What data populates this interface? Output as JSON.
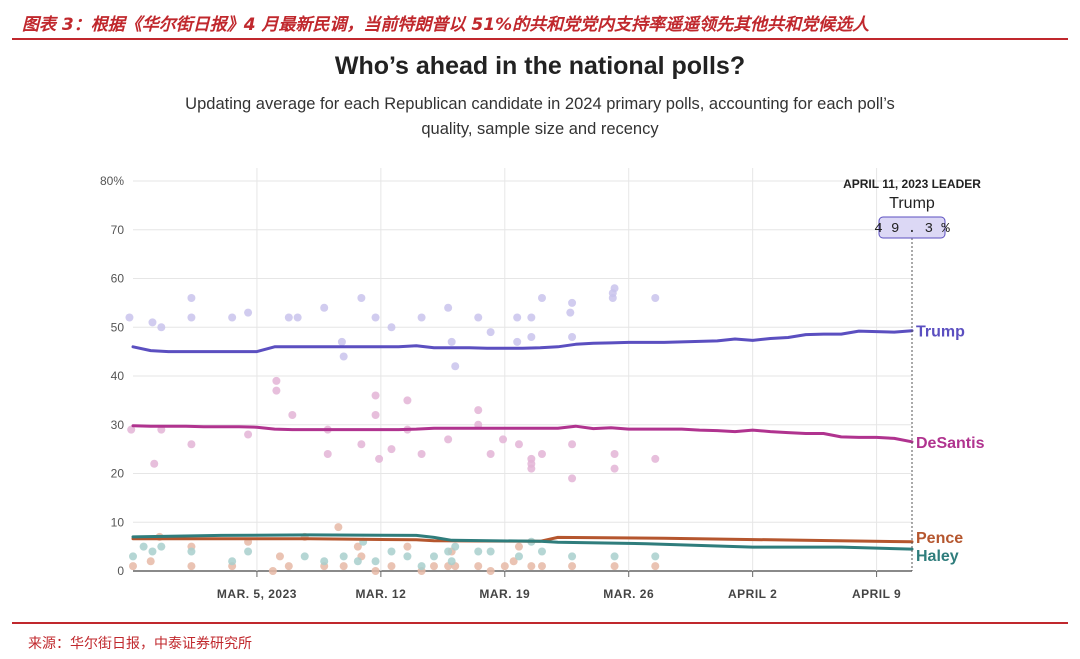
{
  "caption": "图表 3：根据《华尔街日报》4 月最新民调，当前特朗普以 51%的共和党党内支持率遥遥领先其他共和党候选人",
  "source": "来源：华尔街日报，中泰证券研究所",
  "chart_data": {
    "type": "line",
    "title": "Who’s ahead in the national polls?",
    "subtitle": "Updating average for each Republican candidate in 2024 primary polls, accounting for each poll’s quality, sample size and recency",
    "x_range": [
      "2023-02-26",
      "2023-04-11"
    ],
    "ylim": [
      0,
      80
    ],
    "y_ticks": [
      0,
      10,
      20,
      30,
      40,
      50,
      60,
      70,
      80
    ],
    "y_tick_labels": [
      "0",
      "10",
      "20",
      "30",
      "40",
      "50",
      "60",
      "70",
      "80%"
    ],
    "x_ticks": [
      {
        "date": "2023-03-05",
        "label": "MAR. 5, 2023"
      },
      {
        "date": "2023-03-12",
        "label": "MAR. 12"
      },
      {
        "date": "2023-03-19",
        "label": "MAR. 19"
      },
      {
        "date": "2023-03-26",
        "label": "MAR. 26"
      },
      {
        "date": "2023-04-02",
        "label": "APRIL 2"
      },
      {
        "date": "2023-04-09",
        "label": "APRIL 9"
      }
    ],
    "grid": true,
    "leader": {
      "date_label": "APRIL 11, 2023 LEADER",
      "date": "2023-04-11",
      "name": "Trump",
      "value_label": "49.3%"
    },
    "series": [
      {
        "name": "Trump",
        "color": "#5b4fc0",
        "dot_color": "#c9c3ec",
        "x": [
          "2023-02-26",
          "2023-02-27",
          "2023-02-28",
          "2023-03-01",
          "2023-03-02",
          "2023-03-03",
          "2023-03-04",
          "2023-03-05",
          "2023-03-06",
          "2023-03-07",
          "2023-03-08",
          "2023-03-09",
          "2023-03-10",
          "2023-03-11",
          "2023-03-12",
          "2023-03-13",
          "2023-03-14",
          "2023-03-15",
          "2023-03-16",
          "2023-03-17",
          "2023-03-18",
          "2023-03-19",
          "2023-03-20",
          "2023-03-21",
          "2023-03-22",
          "2023-03-23",
          "2023-03-24",
          "2023-03-25",
          "2023-03-26",
          "2023-03-27",
          "2023-03-28",
          "2023-03-29",
          "2023-03-30",
          "2023-03-31",
          "2023-04-01",
          "2023-04-02",
          "2023-04-03",
          "2023-04-04",
          "2023-04-05",
          "2023-04-06",
          "2023-04-07",
          "2023-04-08",
          "2023-04-09",
          "2023-04-10",
          "2023-04-11"
        ],
        "values": [
          46.0,
          45.2,
          45.0,
          45.0,
          45.0,
          45.0,
          45.0,
          45.0,
          46.0,
          46.0,
          46.0,
          46.0,
          46.0,
          46.0,
          46.0,
          46.0,
          46.2,
          45.8,
          45.8,
          45.8,
          45.7,
          45.7,
          45.7,
          45.8,
          46.0,
          46.5,
          46.7,
          46.8,
          46.9,
          46.9,
          46.9,
          47.0,
          47.1,
          47.2,
          47.6,
          47.3,
          47.7,
          47.9,
          48.5,
          48.6,
          48.6,
          49.2,
          49.1,
          49.0,
          49.3
        ],
        "polls": [
          [
            -0.2,
            52
          ],
          [
            1.1,
            51
          ],
          [
            1.6,
            50
          ],
          [
            3.3,
            56
          ],
          [
            3.3,
            52
          ],
          [
            5.6,
            52
          ],
          [
            6.5,
            53
          ],
          [
            8.8,
            52
          ],
          [
            9.3,
            52
          ],
          [
            10.8,
            54
          ],
          [
            11.8,
            47
          ],
          [
            11.9,
            44
          ],
          [
            12.9,
            56
          ],
          [
            13.7,
            52
          ],
          [
            14.6,
            50
          ],
          [
            16.3,
            52
          ],
          [
            17.8,
            54
          ],
          [
            18.0,
            47
          ],
          [
            18.2,
            42
          ],
          [
            19.5,
            52
          ],
          [
            20.2,
            49
          ],
          [
            21.7,
            52
          ],
          [
            21.7,
            47
          ],
          [
            22.5,
            52
          ],
          [
            22.5,
            48
          ],
          [
            23.1,
            56
          ],
          [
            24.8,
            55
          ],
          [
            24.7,
            53
          ],
          [
            24.8,
            48
          ],
          [
            27.1,
            56
          ],
          [
            27.2,
            58
          ],
          [
            27.1,
            57
          ],
          [
            29.5,
            56
          ]
        ]
      },
      {
        "name": "DeSantis",
        "color": "#b0338f",
        "dot_color": "#e3b4d6",
        "x": [
          "2023-02-26",
          "2023-02-27",
          "2023-02-28",
          "2023-03-01",
          "2023-03-02",
          "2023-03-03",
          "2023-03-04",
          "2023-03-05",
          "2023-03-06",
          "2023-03-07",
          "2023-03-08",
          "2023-03-09",
          "2023-03-10",
          "2023-03-11",
          "2023-03-12",
          "2023-03-13",
          "2023-03-14",
          "2023-03-15",
          "2023-03-16",
          "2023-03-17",
          "2023-03-18",
          "2023-03-19",
          "2023-03-20",
          "2023-03-21",
          "2023-03-22",
          "2023-03-23",
          "2023-03-24",
          "2023-03-25",
          "2023-03-26",
          "2023-03-27",
          "2023-03-28",
          "2023-03-29",
          "2023-03-30",
          "2023-03-31",
          "2023-04-01",
          "2023-04-02",
          "2023-04-03",
          "2023-04-04",
          "2023-04-05",
          "2023-04-06",
          "2023-04-07",
          "2023-04-08",
          "2023-04-09",
          "2023-04-10",
          "2023-04-11"
        ],
        "values": [
          29.8,
          29.7,
          29.7,
          29.7,
          29.6,
          29.6,
          29.6,
          29.5,
          29.1,
          29.0,
          29.0,
          29.0,
          29.0,
          29.0,
          29.0,
          29.0,
          29.1,
          29.3,
          29.3,
          29.3,
          29.3,
          29.3,
          29.3,
          29.3,
          29.3,
          29.7,
          29.2,
          29.4,
          29.1,
          29.1,
          29.1,
          29.1,
          28.9,
          28.8,
          28.6,
          28.9,
          28.6,
          28.4,
          28.2,
          28.2,
          27.5,
          27.4,
          27.4,
          27.2,
          26.5
        ],
        "polls": [
          [
            -0.1,
            29
          ],
          [
            1.2,
            22
          ],
          [
            1.6,
            29
          ],
          [
            3.3,
            26
          ],
          [
            6.5,
            28
          ],
          [
            8.1,
            39
          ],
          [
            8.1,
            37
          ],
          [
            9.0,
            32
          ],
          [
            11.0,
            29
          ],
          [
            11.0,
            24
          ],
          [
            12.9,
            26
          ],
          [
            13.7,
            36
          ],
          [
            13.7,
            32
          ],
          [
            13.9,
            23
          ],
          [
            14.6,
            25
          ],
          [
            15.5,
            35
          ],
          [
            15.5,
            29
          ],
          [
            16.3,
            24
          ],
          [
            17.8,
            27
          ],
          [
            19.5,
            33
          ],
          [
            19.5,
            30
          ],
          [
            20.2,
            24
          ],
          [
            20.9,
            27
          ],
          [
            21.8,
            26
          ],
          [
            22.5,
            21
          ],
          [
            22.5,
            23
          ],
          [
            22.5,
            22
          ],
          [
            23.1,
            24
          ],
          [
            24.8,
            26
          ],
          [
            24.8,
            19
          ],
          [
            27.2,
            24
          ],
          [
            27.2,
            21
          ],
          [
            29.5,
            23
          ]
        ]
      },
      {
        "name": "Pence",
        "color": "#b5562e",
        "dot_color": "#e6b9a6",
        "x": [
          "2023-02-26",
          "2023-03-03",
          "2023-03-08",
          "2023-03-14",
          "2023-03-15",
          "2023-03-21",
          "2023-03-22",
          "2023-03-28",
          "2023-04-03",
          "2023-04-11"
        ],
        "values": [
          6.6,
          6.6,
          6.6,
          6.4,
          6.2,
          6.1,
          6.9,
          6.7,
          6.4,
          6.0
        ],
        "polls": [
          [
            0,
            1
          ],
          [
            1,
            2
          ],
          [
            1.5,
            7
          ],
          [
            3.3,
            1
          ],
          [
            3.3,
            5
          ],
          [
            5.6,
            1
          ],
          [
            6.5,
            6
          ],
          [
            7.9,
            0
          ],
          [
            8.3,
            3
          ],
          [
            8.8,
            1
          ],
          [
            9.7,
            7
          ],
          [
            10.8,
            1
          ],
          [
            11.6,
            9
          ],
          [
            11.9,
            1
          ],
          [
            12.7,
            5
          ],
          [
            12.9,
            3
          ],
          [
            13.7,
            0
          ],
          [
            14.6,
            1
          ],
          [
            15.5,
            5
          ],
          [
            16.3,
            0
          ],
          [
            17.0,
            1
          ],
          [
            17.8,
            1
          ],
          [
            18.0,
            4
          ],
          [
            18.2,
            1
          ],
          [
            19.5,
            1
          ],
          [
            20.2,
            0
          ],
          [
            21.0,
            1
          ],
          [
            21.5,
            2
          ],
          [
            21.8,
            5
          ],
          [
            22.5,
            1
          ],
          [
            23.1,
            1
          ],
          [
            24.8,
            1
          ],
          [
            27.2,
            1
          ],
          [
            29.5,
            1
          ]
        ]
      },
      {
        "name": "Haley",
        "color": "#2f7d7c",
        "dot_color": "#a8cfcc",
        "x": [
          "2023-02-26",
          "2023-03-03",
          "2023-03-08",
          "2023-03-14",
          "2023-03-15",
          "2023-03-16",
          "2023-03-21",
          "2023-03-22",
          "2023-03-27",
          "2023-04-02",
          "2023-04-07",
          "2023-04-11"
        ],
        "values": [
          7.0,
          7.3,
          7.4,
          7.3,
          6.9,
          6.3,
          6.1,
          5.9,
          5.6,
          4.9,
          4.9,
          4.5
        ],
        "polls": [
          [
            0,
            3
          ],
          [
            0.6,
            5
          ],
          [
            1.1,
            4
          ],
          [
            1.6,
            5
          ],
          [
            3.3,
            4
          ],
          [
            5.6,
            2
          ],
          [
            6.5,
            4
          ],
          [
            9.7,
            3
          ],
          [
            10.8,
            2
          ],
          [
            11.9,
            3
          ],
          [
            12.7,
            2
          ],
          [
            13.0,
            6
          ],
          [
            13.7,
            2
          ],
          [
            14.6,
            4
          ],
          [
            15.5,
            3
          ],
          [
            16.3,
            1
          ],
          [
            17.0,
            3
          ],
          [
            17.8,
            4
          ],
          [
            18.0,
            2
          ],
          [
            18.2,
            5
          ],
          [
            19.5,
            4
          ],
          [
            20.2,
            4
          ],
          [
            21.8,
            3
          ],
          [
            22.5,
            6
          ],
          [
            23.1,
            4
          ],
          [
            24.8,
            3
          ],
          [
            27.2,
            3
          ],
          [
            29.5,
            3
          ]
        ]
      }
    ]
  }
}
